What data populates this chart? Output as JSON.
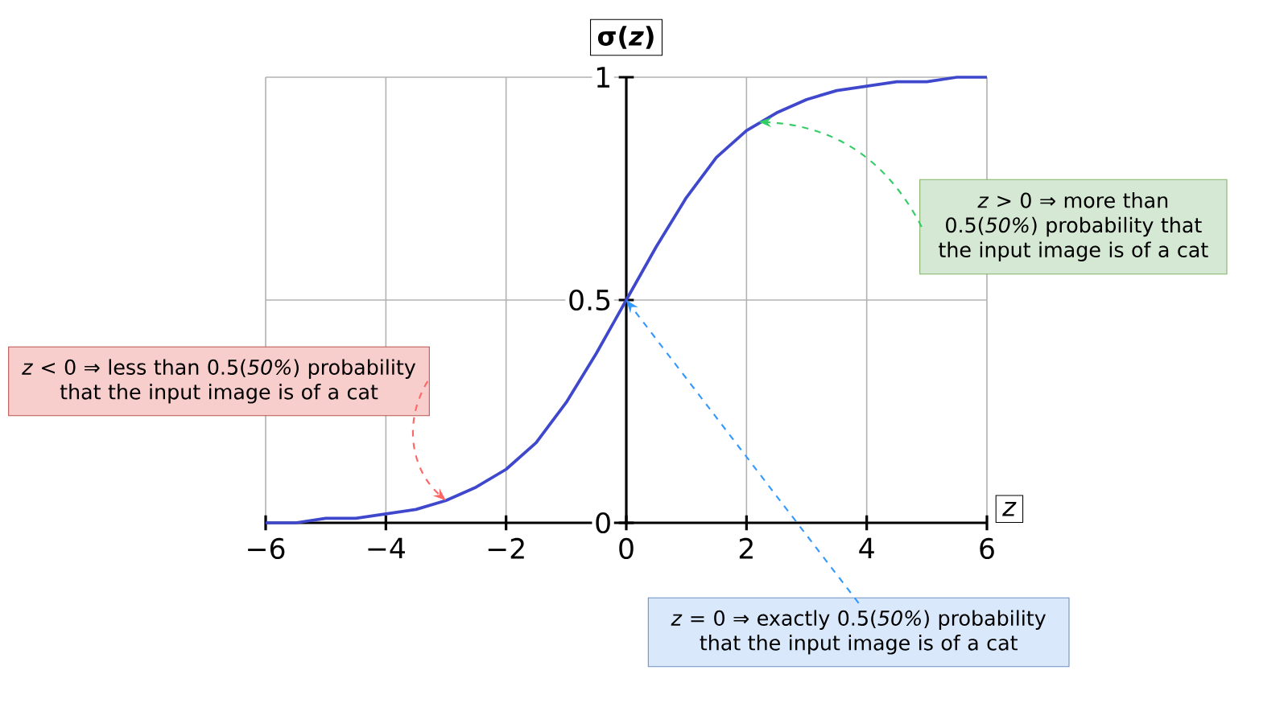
{
  "chart_data": {
    "type": "line",
    "xlabel": "*z*",
    "ylabel": "**σ(*z*)**",
    "x": [
      -6,
      -5.5,
      -5,
      -4.5,
      -4,
      -3.5,
      -3,
      -2.5,
      -2,
      -1.5,
      -1,
      -0.5,
      0,
      0.5,
      1,
      1.5,
      2,
      2.5,
      3,
      3.5,
      4,
      4.5,
      5,
      5.5,
      6
    ],
    "series": [
      {
        "color": "#3f48cc",
        "values": [
          0,
          0,
          0.01,
          0.01,
          0.02,
          0.03,
          0.05,
          0.08,
          0.12,
          0.18,
          0.27,
          0.38,
          0.5,
          0.62,
          0.73,
          0.82,
          0.88,
          0.92,
          0.95,
          0.97,
          0.98,
          0.99,
          0.99,
          1.0,
          1.0
        ]
      }
    ],
    "xlim": [
      -6,
      6
    ],
    "ylim": [
      0,
      1
    ],
    "xticks": [
      {
        "value": -6,
        "label": "−6"
      },
      {
        "value": -4,
        "label": "−4"
      },
      {
        "value": -2,
        "label": "−2"
      },
      0,
      2,
      4,
      6
    ],
    "yticks": [
      0,
      0.5,
      1
    ],
    "grid": true,
    "marker": "none",
    "line_style": "solid",
    "annotations": [
      {
        "text": "*z* > 0 ⇒ more than 0.5(*50%*) probability that the input image is of a cat",
        "x": 2.2,
        "y": 0.9
      },
      {
        "text": "*z* < 0 ⇒ less than 0.5(*50%*) probability that the input image is of a cat",
        "x": -3,
        "y": 0.05
      },
      {
        "text": "*z* = 0 ⇒ exactly 0.5(*50%*) probability that the input image is of a cat",
        "x": 0,
        "y": 0.5
      }
    ]
  }
}
